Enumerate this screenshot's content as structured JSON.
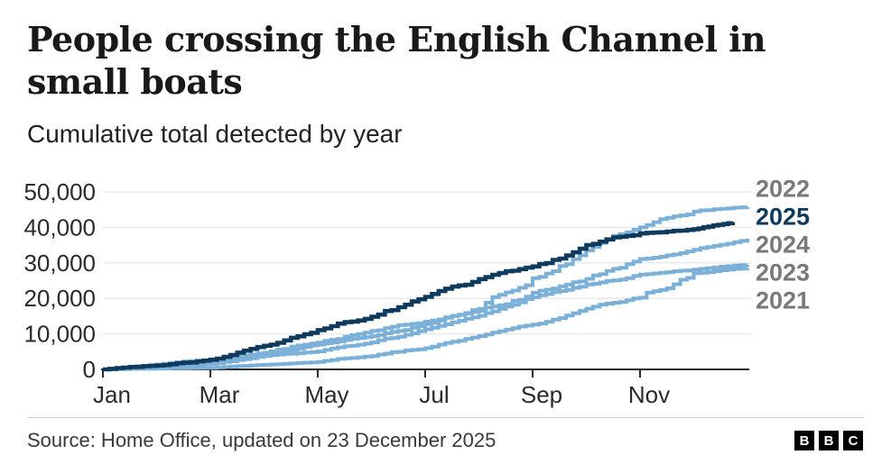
{
  "header": {
    "title": "People crossing the English Channel in small boats",
    "subtitle": "Cumulative total detected by year"
  },
  "footer": {
    "source": "Source: Home Office, updated on 23 December 2025",
    "logo_letters": [
      "B",
      "B",
      "C"
    ]
  },
  "colors": {
    "accent_dark_navy": "#0e3a5d",
    "accent_light_blue": "#7bb0d8",
    "muted_year_label": "#7a7a7a",
    "gridline": "#e8e8e8",
    "axis": "#2b2b2b"
  },
  "chart_data": {
    "type": "line",
    "title": "People crossing the English Channel in small boats",
    "subtitle": "Cumulative total detected by year",
    "xlabel": "",
    "ylabel": "",
    "ylim": [
      0,
      50000
    ],
    "grid": "horizontal",
    "legend_position": "right-of-lines",
    "x_unit": "months, Jan 1 = 0 through Dec 31 = 12, values are cumulative totals",
    "x_ticks": [
      {
        "month": 0,
        "label": "Jan"
      },
      {
        "month": 2,
        "label": "Mar"
      },
      {
        "month": 4,
        "label": "May"
      },
      {
        "month": 6,
        "label": "Jul"
      },
      {
        "month": 8,
        "label": "Sep"
      },
      {
        "month": 10,
        "label": "Nov"
      }
    ],
    "y_ticks": [
      {
        "value": 0,
        "label": "0"
      },
      {
        "value": 10000,
        "label": "10,000"
      },
      {
        "value": 20000,
        "label": "20,000"
      },
      {
        "value": 30000,
        "label": "30,000"
      },
      {
        "value": 40000,
        "label": "40,000"
      },
      {
        "value": 50000,
        "label": "50,000"
      }
    ],
    "series": [
      {
        "name": "2021",
        "color": "#7bb0d8",
        "label_color": "#7a7a7a",
        "bold": false,
        "x_months": [
          0,
          1,
          2,
          3,
          4,
          5,
          6,
          7,
          8,
          9,
          10,
          11,
          12
        ],
        "values": [
          0,
          220,
          455,
          1290,
          2100,
          3750,
          6000,
          9400,
          12650,
          17100,
          20200,
          27100,
          28526
        ]
      },
      {
        "name": "2022",
        "color": "#7bb0d8",
        "label_color": "#7a7a7a",
        "bold": false,
        "x_months": [
          0,
          1,
          2,
          3,
          4,
          5,
          6,
          7,
          8,
          9,
          10,
          11,
          12
        ],
        "values": [
          0,
          1340,
          2690,
          4540,
          6990,
          9330,
          12747,
          17085,
          25700,
          33500,
          40000,
          44500,
          45755
        ]
      },
      {
        "name": "2023",
        "color": "#7bb0d8",
        "label_color": "#7a7a7a",
        "bold": false,
        "x_months": [
          0,
          1,
          2,
          3,
          4,
          5,
          6,
          7,
          8,
          9,
          10,
          11,
          12
        ],
        "values": [
          0,
          990,
          1530,
          3800,
          5050,
          7610,
          11300,
          15100,
          20300,
          23900,
          26700,
          28100,
          29437
        ]
      },
      {
        "name": "2024",
        "color": "#7bb0d8",
        "label_color": "#7a7a7a",
        "bold": false,
        "x_months": [
          0,
          1,
          2,
          3,
          4,
          5,
          6,
          7,
          8,
          9,
          10,
          11,
          12
        ],
        "values": [
          0,
          1340,
          2610,
          4700,
          7570,
          10860,
          13489,
          16500,
          21600,
          25500,
          31100,
          33700,
          36816
        ]
      },
      {
        "name": "2025",
        "color": "#0e3a5d",
        "label_color": "#0e3a5d",
        "bold": true,
        "x_months": [
          0,
          1,
          2,
          3,
          4,
          5,
          6,
          7,
          8,
          9,
          10,
          11,
          11.73
        ],
        "values": [
          0,
          1100,
          2720,
          6640,
          11070,
          14810,
          20420,
          25440,
          29000,
          35000,
          38300,
          39500,
          41500
        ]
      }
    ]
  }
}
